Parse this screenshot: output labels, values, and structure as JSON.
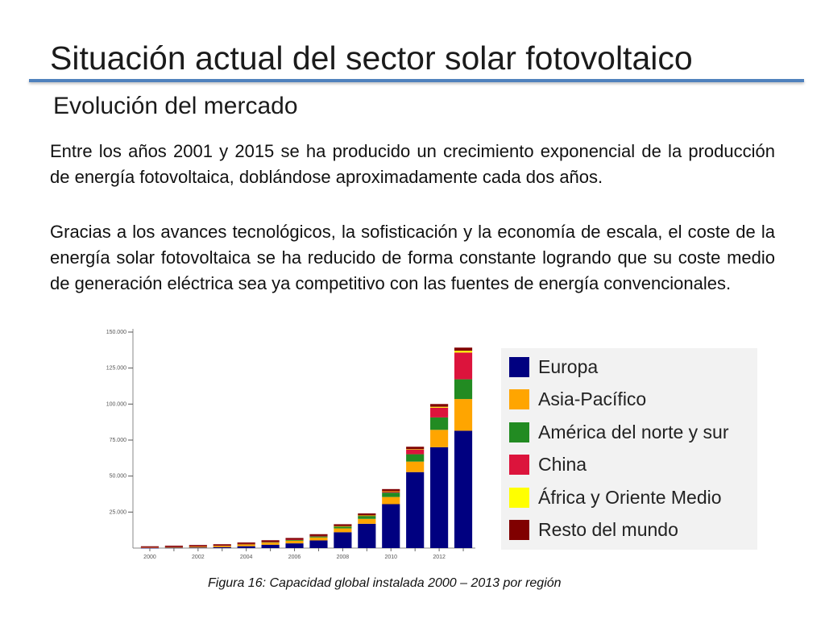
{
  "slide": {
    "title": "Situación actual del sector solar fotovoltaico",
    "subtitle": "Evolución del mercado",
    "paragraphs": [
      "Entre los años 2001 y 2015 se ha producido un crecimiento exponencial de la producción de energía fotovoltaica, doblándose aproximadamente cada dos años.",
      "Gracias a los avances tecnológicos, la sofisticación y la economía de escala, el coste de la energía solar fotovoltaica se ha reducido de forma constante logrando que su coste medio de generación eléctrica sea ya competitivo con las fuentes de energía convencionales."
    ],
    "caption": "Figura 16: Capacidad global instalada 2000 – 2013 por región"
  },
  "chart_data": {
    "type": "bar",
    "stacked": true,
    "title": "",
    "xlabel": "",
    "ylabel": "",
    "ylim": [
      0,
      150000
    ],
    "yticks": [
      25000,
      50000,
      75000,
      100000,
      125000,
      150000
    ],
    "ytick_labels": [
      "25.000",
      "50.000",
      "75.000",
      "100.000",
      "125.000",
      "150.000"
    ],
    "categories": [
      "2000",
      "2001",
      "2002",
      "2003",
      "2004",
      "2005",
      "2006",
      "2007",
      "2008",
      "2009",
      "2010",
      "2011",
      "2012",
      "2013"
    ],
    "xtick_labels": [
      "2000",
      "",
      "2002",
      "",
      "2004",
      "",
      "2006",
      "",
      "2008",
      "",
      "2010",
      "",
      "2012",
      ""
    ],
    "legend_position": "right",
    "series": [
      {
        "name": "Europa",
        "color": "#000080",
        "values": [
          129,
          264,
          397,
          601,
          1306,
          2291,
          3289,
          5312,
          11020,
          16854,
          30505,
          52764,
          70043,
          81488
        ]
      },
      {
        "name": "Asia-Pacífico",
        "color": "#ffa500",
        "values": [
          368,
          496,
          686,
          921,
          1205,
          1540,
          1836,
          2072,
          2650,
          3423,
          4955,
          7311,
          12054,
          21992
        ]
      },
      {
        "name": "América del norte y sur",
        "color": "#228b22",
        "values": [
          146,
          174,
          226,
          298,
          396,
          534,
          707,
          961,
          1428,
          2037,
          3070,
          5094,
          8616,
          13727
        ]
      },
      {
        "name": "China",
        "color": "#dc143c",
        "values": [
          19,
          24,
          42,
          52,
          62,
          68,
          80,
          100,
          140,
          300,
          800,
          3300,
          6800,
          18600
        ]
      },
      {
        "name": "África y Oriente Medio",
        "color": "#ffff00",
        "values": [
          0,
          0,
          0,
          0,
          0,
          0,
          0,
          0,
          20,
          50,
          130,
          200,
          620,
          1200
        ]
      },
      {
        "name": "Resto del mundo",
        "color": "#800000",
        "values": [
          600,
          690,
          770,
          800,
          900,
          1000,
          1100,
          1200,
          1300,
          1400,
          1500,
          1700,
          1900,
          2200
        ]
      }
    ]
  }
}
